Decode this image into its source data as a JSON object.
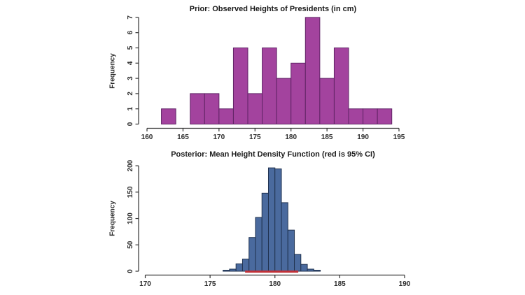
{
  "figure": {
    "background": "#ffffff",
    "text_color": "#1a1a1a",
    "axis_color": "#333333"
  },
  "chart_data": [
    {
      "type": "bar",
      "id": "prior",
      "title": "Prior: Observed Heights of Presidents (in cm)",
      "xlabel": "",
      "ylabel": "Frequency",
      "bin_start": 162,
      "bin_width": 2,
      "values": [
        1,
        0,
        2,
        2,
        1,
        5,
        2,
        5,
        3,
        4,
        7,
        3,
        5,
        1,
        1,
        1
      ],
      "xlim": [
        160,
        195
      ],
      "ylim": [
        0,
        7
      ],
      "xticks": [
        160,
        165,
        170,
        175,
        180,
        185,
        190,
        195
      ],
      "yticks": [
        0,
        1,
        2,
        3,
        4,
        5,
        6,
        7
      ],
      "grid": false,
      "bar_fill": "#A3439E",
      "bar_stroke": "#5F2365"
    },
    {
      "type": "bar",
      "id": "posterior",
      "title": "Posterior: Mean Height Density Function (red is 95% CI)",
      "xlabel": "",
      "ylabel": "Frequency",
      "bin_start": 176,
      "bin_width": 0.5,
      "values": [
        2,
        4,
        14,
        23,
        64,
        102,
        148,
        196,
        194,
        130,
        78,
        32,
        13,
        4,
        2
      ],
      "xlim": [
        170,
        190
      ],
      "ylim": [
        0,
        200
      ],
      "xticks": [
        170,
        175,
        180,
        185,
        190
      ],
      "yticks": [
        0,
        50,
        100,
        150,
        200
      ],
      "grid": false,
      "bar_fill": "#4A6A9E",
      "bar_stroke": "#20324F",
      "ci_line": {
        "x_start": 177.7,
        "x_end": 181.8,
        "color": "#C13138"
      }
    }
  ]
}
